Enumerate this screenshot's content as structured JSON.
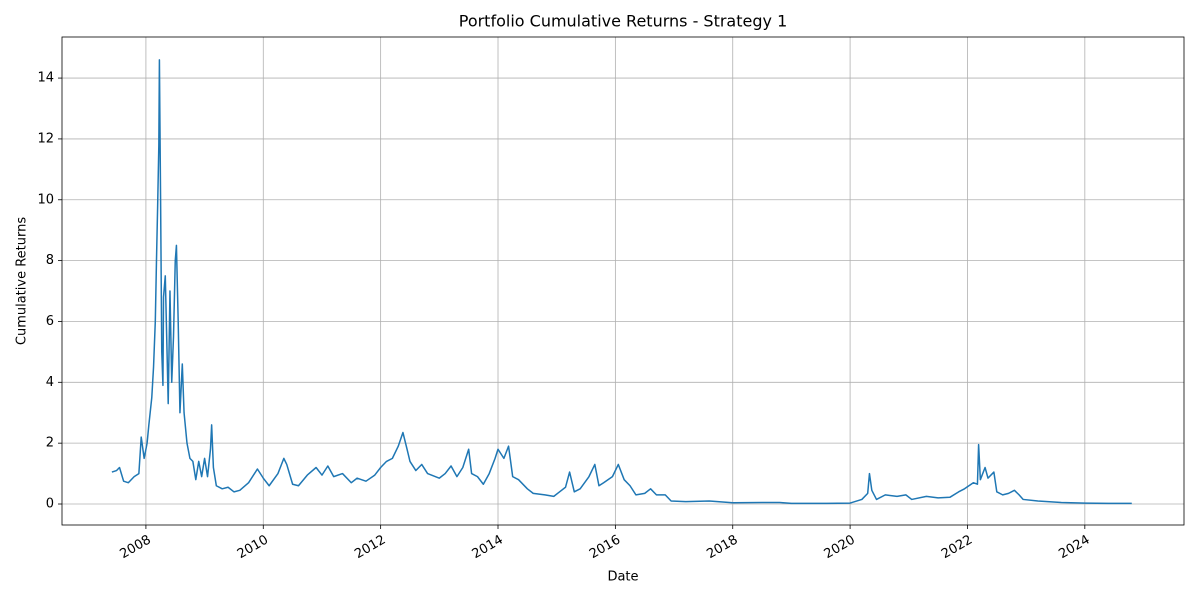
{
  "chart_data": {
    "type": "line",
    "title": "Portfolio Cumulative Returns - Strategy 1",
    "x_label": "Date",
    "y_label": "Cumulative Returns",
    "xlim": [
      2006.57,
      2025.69
    ],
    "xticks": [
      2008,
      2010,
      2012,
      2014,
      2016,
      2018,
      2020,
      2022,
      2024
    ],
    "ylim": [
      -0.69,
      15.35
    ],
    "yticks": [
      0,
      2,
      4,
      6,
      8,
      10,
      12,
      14
    ],
    "grid": true,
    "series": [
      {
        "name": "Strategy 1",
        "color": "#1f77b4",
        "x": [
          2007.42,
          2007.5,
          2007.55,
          2007.62,
          2007.7,
          2007.8,
          2007.88,
          2007.92,
          2007.97,
          2008.02,
          2008.05,
          2008.1,
          2008.13,
          2008.16,
          2008.18,
          2008.2,
          2008.22,
          2008.23,
          2008.25,
          2008.27,
          2008.29,
          2008.3,
          2008.33,
          2008.36,
          2008.38,
          2008.41,
          2008.44,
          2008.47,
          2008.5,
          2008.52,
          2008.55,
          2008.58,
          2008.62,
          2008.65,
          2008.7,
          2008.75,
          2008.8,
          2008.85,
          2008.9,
          2008.95,
          2009.0,
          2009.05,
          2009.1,
          2009.12,
          2009.15,
          2009.2,
          2009.3,
          2009.4,
          2009.5,
          2009.6,
          2009.75,
          2009.9,
          2010.0,
          2010.1,
          2010.25,
          2010.35,
          2010.4,
          2010.5,
          2010.6,
          2010.75,
          2010.9,
          2011.0,
          2011.1,
          2011.2,
          2011.35,
          2011.5,
          2011.6,
          2011.75,
          2011.9,
          2012.0,
          2012.1,
          2012.2,
          2012.3,
          2012.38,
          2012.45,
          2012.5,
          2012.6,
          2012.7,
          2012.8,
          2013.0,
          2013.1,
          2013.2,
          2013.3,
          2013.4,
          2013.5,
          2013.55,
          2013.65,
          2013.75,
          2013.85,
          2013.95,
          2014.0,
          2014.1,
          2014.18,
          2014.25,
          2014.35,
          2014.5,
          2014.6,
          2014.8,
          2014.95,
          2015.05,
          2015.15,
          2015.22,
          2015.3,
          2015.4,
          2015.55,
          2015.65,
          2015.72,
          2015.8,
          2015.95,
          2016.05,
          2016.15,
          2016.25,
          2016.35,
          2016.5,
          2016.6,
          2016.7,
          2016.85,
          2016.95,
          2017.2,
          2017.6,
          2018.0,
          2018.5,
          2018.8,
          2019.0,
          2019.6,
          2020.0,
          2020.2,
          2020.3,
          2020.33,
          2020.37,
          2020.45,
          2020.6,
          2020.8,
          2020.95,
          2021.05,
          2021.3,
          2021.5,
          2021.7,
          2021.85,
          2021.95,
          2022.1,
          2022.17,
          2022.19,
          2022.22,
          2022.3,
          2022.35,
          2022.45,
          2022.5,
          2022.6,
          2022.7,
          2022.8,
          2022.88,
          2022.95,
          2023.2,
          2023.6,
          2024.0,
          2024.4,
          2024.8
        ],
        "values": [
          1.05,
          1.1,
          1.2,
          0.75,
          0.7,
          0.9,
          1.0,
          2.2,
          1.5,
          2.0,
          2.6,
          3.5,
          4.5,
          6.0,
          8.0,
          9.8,
          11.8,
          14.6,
          10.0,
          5.0,
          3.9,
          6.8,
          7.5,
          5.0,
          3.3,
          7.0,
          4.0,
          5.5,
          8.0,
          8.5,
          6.0,
          3.0,
          4.6,
          3.0,
          2.0,
          1.5,
          1.4,
          0.8,
          1.4,
          0.9,
          1.5,
          0.9,
          1.8,
          2.6,
          1.2,
          0.6,
          0.5,
          0.55,
          0.4,
          0.45,
          0.7,
          1.15,
          0.85,
          0.6,
          1.0,
          1.5,
          1.3,
          0.65,
          0.6,
          0.95,
          1.2,
          0.95,
          1.25,
          0.9,
          1.0,
          0.7,
          0.85,
          0.75,
          0.95,
          1.2,
          1.4,
          1.5,
          1.9,
          2.35,
          1.8,
          1.4,
          1.1,
          1.3,
          1.0,
          0.85,
          1.0,
          1.25,
          0.9,
          1.2,
          1.8,
          1.0,
          0.9,
          0.65,
          1.0,
          1.5,
          1.8,
          1.5,
          1.9,
          0.9,
          0.8,
          0.5,
          0.35,
          0.3,
          0.25,
          0.4,
          0.55,
          1.05,
          0.4,
          0.5,
          0.9,
          1.3,
          0.6,
          0.7,
          0.9,
          1.3,
          0.8,
          0.6,
          0.3,
          0.35,
          0.5,
          0.3,
          0.3,
          0.1,
          0.08,
          0.1,
          0.04,
          0.05,
          0.05,
          0.02,
          0.02,
          0.03,
          0.15,
          0.35,
          1.0,
          0.45,
          0.15,
          0.3,
          0.25,
          0.3,
          0.15,
          0.25,
          0.2,
          0.22,
          0.4,
          0.5,
          0.7,
          0.65,
          1.95,
          0.8,
          1.2,
          0.85,
          1.05,
          0.4,
          0.3,
          0.35,
          0.45,
          0.3,
          0.15,
          0.1,
          0.05,
          0.03,
          0.02,
          0.02
        ]
      }
    ]
  }
}
